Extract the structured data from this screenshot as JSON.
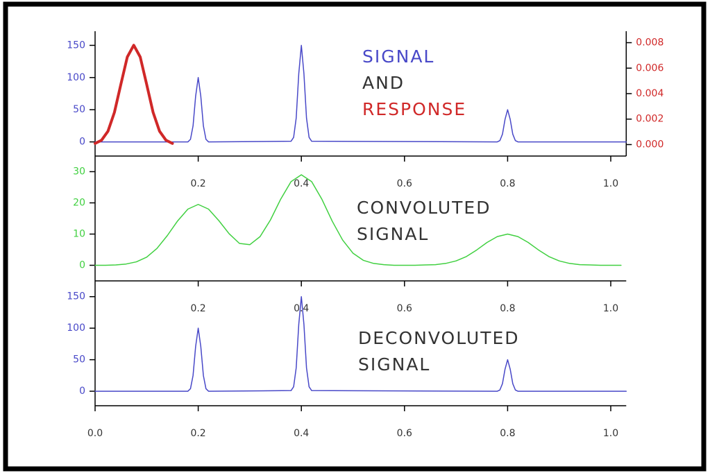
{
  "chart_data": [
    {
      "type": "line",
      "xlim": [
        0,
        1.03
      ],
      "xticks": [
        0.2,
        0.4,
        0.6,
        0.8,
        {
          "value": 1,
          "label": "1.0"
        }
      ],
      "ylim": [
        -22,
        172
      ],
      "yticks": [
        0,
        50,
        100,
        150
      ],
      "ycolor": "#4848c8",
      "y2lim": [
        -0.0009,
        0.0089
      ],
      "y2ticks": [
        {
          "value": 0,
          "label": "0.000"
        },
        {
          "value": 0.002,
          "label": "0.002"
        },
        {
          "value": 0.004,
          "label": "0.004"
        },
        {
          "value": 0.006,
          "label": "0.006"
        },
        {
          "value": 0.008,
          "label": "0.008"
        }
      ],
      "y2color": "#d02828",
      "series": [
        {
          "color": "#4848c8",
          "width": 1.5,
          "x": [
            0,
            0.18,
            0.185,
            0.19,
            0.195,
            0.2,
            0.205,
            0.21,
            0.215,
            0.22,
            0.38,
            0.385,
            0.39,
            0.395,
            0.4,
            0.405,
            0.41,
            0.415,
            0.42,
            0.78,
            0.785,
            0.79,
            0.795,
            0.8,
            0.805,
            0.81,
            0.815,
            0.82,
            1.03
          ],
          "values": [
            0,
            0,
            4,
            25,
            71,
            100,
            71,
            25,
            4,
            0,
            1,
            7,
            37,
            106,
            150,
            106,
            37,
            7,
            1,
            0,
            2,
            12,
            35,
            50,
            35,
            12,
            2,
            0,
            0
          ]
        },
        {
          "color": "#d02828",
          "width": 4,
          "axis": "y2",
          "x": [
            0,
            0.0125,
            0.025,
            0.0375,
            0.05,
            0.0625,
            0.075,
            0.0875,
            0.1,
            0.1125,
            0.125,
            0.1375,
            0.15
          ],
          "values": [
            9e-05,
            0.00034,
            0.00105,
            0.00253,
            0.00473,
            0.00688,
            0.0078,
            0.00688,
            0.00473,
            0.00253,
            0.00105,
            0.00034,
            9e-05
          ]
        }
      ],
      "annotations": [
        {
          "text": "SIGNAL",
          "color": "#4848c8"
        },
        {
          "text": "AND",
          "color": "#333333"
        },
        {
          "text": "RESPONSE",
          "color": "#d02828"
        }
      ]
    },
    {
      "type": "line",
      "xlim": [
        0,
        1.03
      ],
      "xticks": [
        0.2,
        0.4,
        0.6,
        0.8,
        {
          "value": 1,
          "label": "1.0"
        }
      ],
      "ylim": [
        -5,
        35
      ],
      "yticks": [
        0,
        10,
        20,
        30
      ],
      "ycolor": "#40d040",
      "series": [
        {
          "color": "#40d040",
          "width": 1.5,
          "x": [
            0,
            0.02,
            0.04,
            0.06,
            0.08,
            0.1,
            0.12,
            0.14,
            0.16,
            0.18,
            0.2,
            0.22,
            0.24,
            0.26,
            0.28,
            0.3,
            0.32,
            0.34,
            0.36,
            0.38,
            0.4,
            0.42,
            0.44,
            0.46,
            0.48,
            0.5,
            0.52,
            0.54,
            0.56,
            0.58,
            0.6,
            0.62,
            0.64,
            0.66,
            0.68,
            0.7,
            0.72,
            0.74,
            0.76,
            0.78,
            0.8,
            0.82,
            0.84,
            0.86,
            0.88,
            0.9,
            0.92,
            0.94,
            0.96,
            0.98,
            1,
            1.02
          ],
          "values": [
            0,
            0,
            0.1,
            0.4,
            1.1,
            2.6,
            5.4,
            9.5,
            14.2,
            18,
            19.5,
            18,
            14.3,
            10.1,
            7,
            6.6,
            9.2,
            14.5,
            21.2,
            26.8,
            29,
            26.8,
            21.1,
            14.1,
            8.1,
            3.9,
            1.6,
            0.6,
            0.2,
            0,
            0,
            0,
            0.1,
            0.2,
            0.6,
            1.4,
            2.8,
            4.9,
            7.3,
            9.2,
            10,
            9.2,
            7.3,
            4.9,
            2.8,
            1.4,
            0.6,
            0.2,
            0.1,
            0,
            0,
            0
          ]
        }
      ],
      "annotations": [
        {
          "text": "CONVOLUTED",
          "color": "#333333"
        },
        {
          "text": "SIGNAL",
          "color": "#333333"
        }
      ]
    },
    {
      "type": "line",
      "xlim": [
        0,
        1.03
      ],
      "xticks": [
        {
          "value": 0,
          "label": "0.0"
        },
        0.2,
        0.4,
        0.6,
        0.8,
        {
          "value": 1,
          "label": "1.0"
        }
      ],
      "ylim": [
        -23,
        175
      ],
      "yticks": [
        0,
        50,
        100,
        150
      ],
      "ycolor": "#4848c8",
      "series": [
        {
          "color": "#4848c8",
          "width": 1.5,
          "x": [
            0,
            0.18,
            0.185,
            0.19,
            0.195,
            0.2,
            0.205,
            0.21,
            0.215,
            0.22,
            0.38,
            0.385,
            0.39,
            0.395,
            0.4,
            0.405,
            0.41,
            0.415,
            0.42,
            0.78,
            0.785,
            0.79,
            0.795,
            0.8,
            0.805,
            0.81,
            0.815,
            0.82,
            1.03
          ],
          "values": [
            0,
            0,
            4,
            25,
            71,
            100,
            71,
            25,
            4,
            0,
            1,
            7,
            37,
            106,
            150,
            106,
            37,
            7,
            1,
            0,
            2,
            12,
            35,
            50,
            35,
            12,
            2,
            0,
            0
          ]
        }
      ],
      "annotations": [
        {
          "text": "DECONVOLUTED",
          "color": "#333333"
        },
        {
          "text": "SIGNAL",
          "color": "#333333"
        }
      ]
    }
  ]
}
